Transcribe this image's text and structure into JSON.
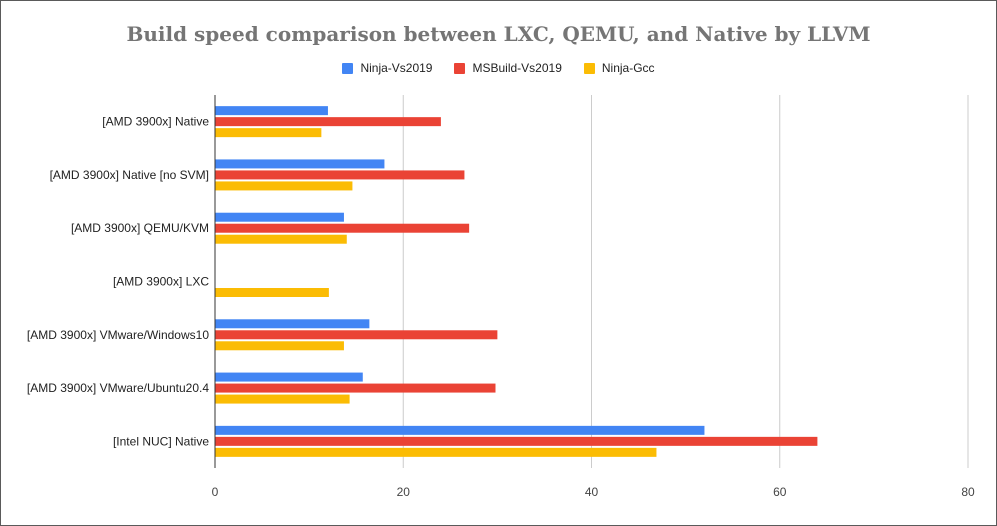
{
  "chart_data": {
    "type": "bar",
    "orientation": "horizontal",
    "title": "Build speed comparison between LXC, QEMU, and Native by LLVM",
    "xlabel": "",
    "ylabel": "",
    "xlim": [
      0,
      80
    ],
    "xticks": [
      0,
      20,
      40,
      60,
      80
    ],
    "grid": true,
    "legend_position": "top",
    "categories": [
      "[AMD 3900x] Native",
      "[AMD 3900x] Native [no SVM]",
      "[AMD 3900x] QEMU/KVM",
      "[AMD 3900x] LXC",
      "[AMD 3900x] VMware/Windows10",
      "[AMD 3900x] VMware/Ubuntu20.4",
      "[Intel NUC] Native"
    ],
    "series": [
      {
        "name": "Ninja-Vs2019",
        "color": "#4285f4",
        "values": [
          12,
          18,
          13.7,
          null,
          16.4,
          15.7,
          52
        ]
      },
      {
        "name": "MSBuild-Vs2019",
        "color": "#ea4335",
        "values": [
          24,
          26.5,
          27,
          null,
          30,
          29.8,
          64
        ]
      },
      {
        "name": "Ninja-Gcc",
        "color": "#fbbc04",
        "values": [
          11.3,
          14.6,
          14,
          12.1,
          13.7,
          14.3,
          46.9
        ]
      }
    ]
  }
}
